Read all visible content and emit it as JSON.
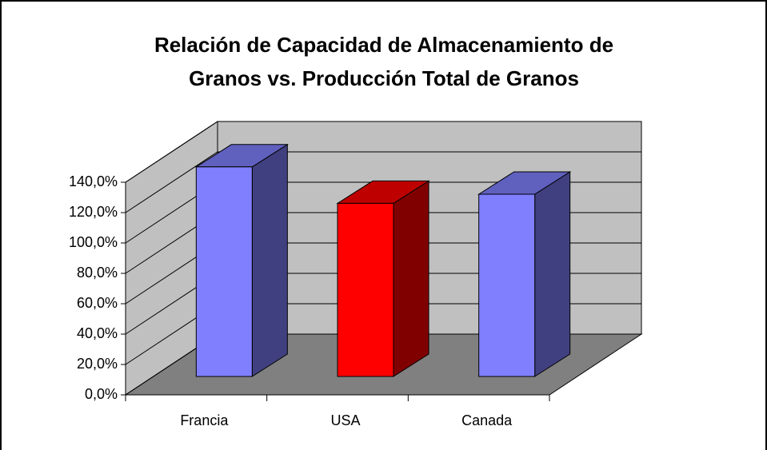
{
  "chart_data": {
    "type": "bar3d",
    "title": [
      "Relación de Capacidad de Almacenamiento de",
      "Granos vs. Producción Total de Granos"
    ],
    "categories": [
      "Francia",
      "USA",
      "Canada"
    ],
    "values": [
      138,
      114,
      120
    ],
    "colors": [
      "#8080ff",
      "#ff0000",
      "#8080ff"
    ],
    "ylim": [
      0,
      140
    ],
    "yticks": [
      {
        "value": 0,
        "label": "0,0%"
      },
      {
        "value": 20,
        "label": "20,0%"
      },
      {
        "value": 40,
        "label": "40,0%"
      },
      {
        "value": 60,
        "label": "60,0%"
      },
      {
        "value": 80,
        "label": "80,0%"
      },
      {
        "value": 100,
        "label": "100,0%"
      },
      {
        "value": 120,
        "label": "120,0%"
      },
      {
        "value": 140,
        "label": "140,0%"
      }
    ],
    "grid": true
  }
}
